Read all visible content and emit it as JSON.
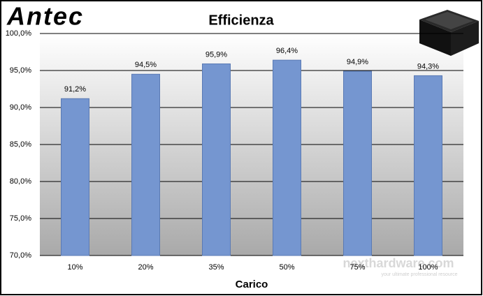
{
  "brand": "Antec",
  "watermark": {
    "name": "nexthardware.com",
    "tagline": "your ultimate professional resource"
  },
  "chart_data": {
    "type": "bar",
    "title": "Efficienza",
    "x_label": "Carico",
    "categories": [
      "10%",
      "20%",
      "35%",
      "50%",
      "75%",
      "100%"
    ],
    "values": [
      91.2,
      94.5,
      95.9,
      96.4,
      94.9,
      94.3
    ],
    "value_labels": [
      "91,2%",
      "94,5%",
      "95,9%",
      "96,4%",
      "94,9%",
      "94,3%"
    ],
    "color": "#7596d0",
    "ylim": [
      70,
      100
    ],
    "yticks": [
      {
        "value": 70,
        "label": "70,0%"
      },
      {
        "value": 75,
        "label": "75,0%"
      },
      {
        "value": 80,
        "label": "80,0%"
      },
      {
        "value": 85,
        "label": "85,0%"
      },
      {
        "value": 90,
        "label": "90,0%"
      },
      {
        "value": 95,
        "label": "95,0%"
      },
      {
        "value": 100,
        "label": "100,0%"
      }
    ],
    "grid": true
  }
}
